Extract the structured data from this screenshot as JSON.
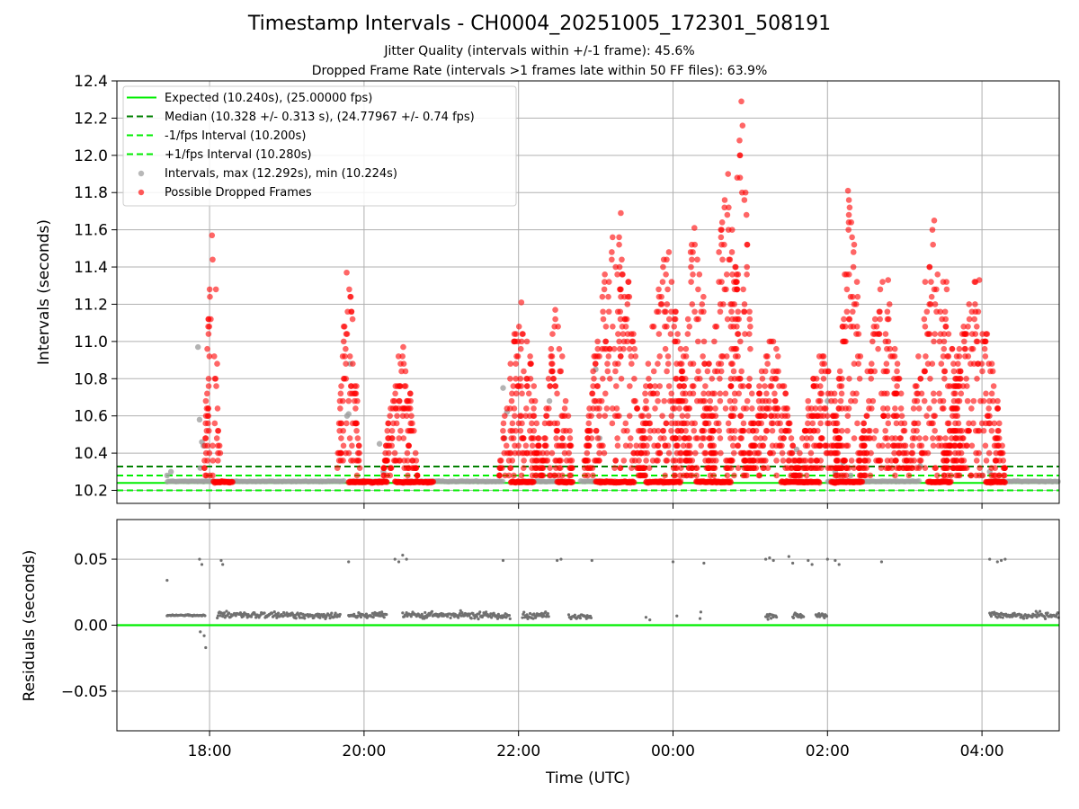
{
  "header": {
    "title": "Timestamp Intervals - CH0004_20251005_172301_508191",
    "subtitle_jitter": "Jitter Quality (intervals within +/-1 frame): 45.6%",
    "subtitle_dropped": "Dropped Frame Rate (intervals >1 frames late within 50 FF files): 63.9%"
  },
  "colors": {
    "expected": "#00ee00",
    "median": "#008000",
    "interval_points": "#a0a0a0",
    "dropped_points": "#ff0000",
    "residual_points": "#707070",
    "grid": "#b0b0b0"
  },
  "chart_data": [
    {
      "type": "scatter",
      "panel": "intervals",
      "title": "Timestamp Intervals - CH0004_20251005_172301_508191",
      "xlabel": "",
      "ylabel": "Intervals (seconds)",
      "x_unit": "hours since 00:00 UTC Oct 5",
      "xlim": [
        16.8,
        29.0
      ],
      "ylim": [
        10.13,
        12.4
      ],
      "grid": true,
      "x_ticks": [
        18,
        20,
        22,
        24,
        26,
        28
      ],
      "y_ticks": [
        10.2,
        10.4,
        10.6,
        10.8,
        11.0,
        11.2,
        11.4,
        11.6,
        11.8,
        12.0,
        12.2,
        12.4
      ],
      "y_tick_labels": [
        "10.2",
        "10.4",
        "10.6",
        "10.8",
        "11.0",
        "11.2",
        "11.4",
        "11.6",
        "11.8",
        "12.0",
        "12.2",
        "12.4"
      ],
      "legend_position": "top-left",
      "reference_lines": [
        {
          "name": "expected",
          "y": 10.24,
          "style": "solid",
          "color": "#00ee00",
          "label": "Expected (10.240s), (25.00000 fps)"
        },
        {
          "name": "median",
          "y": 10.328,
          "style": "dashed",
          "color": "#008000",
          "label": "Median (10.328 +/- 0.313 s), (24.77967 +/- 0.74 fps)"
        },
        {
          "name": "minus-one-fps",
          "y": 10.2,
          "style": "dashed",
          "color": "#00ee00",
          "label": "-1/fps Interval (10.200s)"
        },
        {
          "name": "plus-one-fps",
          "y": 10.28,
          "style": "dashed",
          "color": "#00ee00",
          "label": "+1/fps Interval (10.280s)"
        }
      ],
      "series": [
        {
          "name": "intervals",
          "label": "Intervals, max (12.292s), min (10.224s)",
          "color": "#a0a0a0",
          "max": 12.292,
          "min": 10.224,
          "baseline_segments": [
            [
              17.45,
              18.15
            ],
            [
              18.15,
              19.75
            ],
            [
              19.85,
              20.3
            ],
            [
              20.55,
              21.8
            ],
            [
              22.05,
              22.6
            ],
            [
              22.8,
              23.1
            ],
            [
              26.0,
              27.2
            ],
            [
              28.1,
              29.0
            ]
          ],
          "baseline_value": 10.248,
          "x": [
            17.45,
            17.5,
            17.85,
            17.87,
            17.9,
            17.88,
            17.92,
            19.8,
            19.82,
            19.78,
            20.2,
            20.25,
            21.8,
            21.82,
            21.85,
            22.4,
            23.0,
            23.05,
            25.6,
            26.0,
            26.1,
            26.2,
            26.3,
            27.2,
            28.0,
            28.1
          ],
          "y": [
            10.28,
            10.3,
            10.97,
            10.58,
            10.46,
            10.32,
            10.44,
            10.61,
            10.88,
            10.6,
            10.45,
            10.3,
            10.75,
            10.48,
            10.62,
            10.68,
            10.85,
            10.48,
            10.42,
            10.68,
            10.3,
            10.35,
            10.28,
            10.33,
            10.28,
            10.3
          ]
        },
        {
          "name": "possible-dropped-frames",
          "label": "Possible Dropped Frames",
          "color": "#ff0000",
          "bursts": [
            {
              "start": 17.93,
              "end": 18.15,
              "peak": 11.57
            },
            {
              "start": 19.65,
              "end": 19.95,
              "peak": 11.37
            },
            {
              "start": 20.25,
              "end": 20.7,
              "peak": 10.97
            },
            {
              "start": 21.75,
              "end": 22.3,
              "peak": 11.21
            },
            {
              "start": 22.3,
              "end": 22.7,
              "peak": 11.17
            },
            {
              "start": 22.85,
              "end": 23.65,
              "peak": 11.69
            },
            {
              "start": 23.55,
              "end": 24.25,
              "peak": 11.48
            },
            {
              "start": 24.0,
              "end": 24.55,
              "peak": 11.61
            },
            {
              "start": 24.45,
              "end": 24.95,
              "peak": 11.9
            },
            {
              "start": 24.7,
              "end": 25.05,
              "peak": 12.29
            },
            {
              "start": 24.95,
              "end": 25.6,
              "peak": 11.0
            },
            {
              "start": 25.6,
              "end": 26.25,
              "peak": 10.92
            },
            {
              "start": 26.1,
              "end": 26.5,
              "peak": 11.81
            },
            {
              "start": 26.4,
              "end": 27.05,
              "peak": 11.33
            },
            {
              "start": 27.05,
              "end": 27.75,
              "peak": 11.65
            },
            {
              "start": 27.5,
              "end": 28.3,
              "peak": 11.33
            }
          ],
          "floor_clusters": [
            [
              18.05,
              18.3
            ],
            [
              19.8,
              20.3
            ],
            [
              20.4,
              20.9
            ],
            [
              21.9,
              22.2
            ],
            [
              22.5,
              22.7
            ],
            [
              23.0,
              23.5
            ],
            [
              23.65,
              24.1
            ],
            [
              24.3,
              24.75
            ],
            [
              25.4,
              25.9
            ],
            [
              26.05,
              26.45
            ],
            [
              27.3,
              27.6
            ],
            [
              28.05,
              28.3
            ]
          ]
        }
      ]
    },
    {
      "type": "scatter",
      "panel": "residuals",
      "xlabel": "Time (UTC)",
      "ylabel": "Residuals (seconds)",
      "x_unit": "hours since 00:00 UTC Oct 5",
      "xlim": [
        16.8,
        29.0
      ],
      "ylim": [
        -0.08,
        0.08
      ],
      "grid": true,
      "x_ticks": [
        18,
        20,
        22,
        24,
        26,
        28
      ],
      "x_tick_labels": [
        "18:00",
        "20:00",
        "22:00",
        "00:00",
        "02:00",
        "04:00"
      ],
      "y_ticks": [
        0.05,
        0.0,
        -0.05
      ],
      "y_tick_labels": [
        "0.05",
        "0.00",
        "−0.05"
      ],
      "zero_line": {
        "y": 0.0,
        "color": "#00ee00"
      },
      "series": [
        {
          "name": "residuals",
          "color": "#707070",
          "bands": [
            {
              "start": 17.45,
              "end": 17.95,
              "y": 0.0075,
              "spread": 0.0015
            },
            {
              "start": 18.1,
              "end": 19.7,
              "y": 0.0075,
              "spread": 0.006
            },
            {
              "start": 19.8,
              "end": 20.3,
              "y": 0.0075,
              "spread": 0.006
            },
            {
              "start": 20.5,
              "end": 21.9,
              "y": 0.0075,
              "spread": 0.006
            },
            {
              "start": 22.05,
              "end": 22.4,
              "y": 0.0075,
              "spread": 0.006
            },
            {
              "start": 22.65,
              "end": 22.95,
              "y": 0.0065,
              "spread": 0.005
            },
            {
              "start": 25.2,
              "end": 25.35,
              "y": 0.007,
              "spread": 0.005
            },
            {
              "start": 25.55,
              "end": 25.7,
              "y": 0.007,
              "spread": 0.005
            },
            {
              "start": 25.85,
              "end": 26.0,
              "y": 0.007,
              "spread": 0.005
            },
            {
              "start": 28.1,
              "end": 29.0,
              "y": 0.0075,
              "spread": 0.006
            }
          ],
          "x": [
            17.45,
            17.87,
            17.88,
            17.9,
            17.93,
            17.95,
            18.15,
            18.17,
            19.8,
            20.4,
            20.45,
            20.5,
            20.55,
            21.8,
            22.5,
            22.55,
            22.95,
            23.65,
            23.7,
            24.0,
            24.05,
            24.35,
            24.36,
            24.4,
            25.2,
            25.25,
            25.3,
            25.5,
            25.55,
            25.75,
            25.8,
            26.0,
            26.1,
            26.15,
            26.7,
            28.1,
            28.2,
            28.25,
            28.3
          ],
          "y": [
            0.034,
            0.05,
            -0.005,
            0.046,
            -0.008,
            -0.017,
            0.049,
            0.046,
            0.048,
            0.05,
            0.048,
            0.053,
            0.05,
            0.049,
            0.049,
            0.05,
            0.049,
            0.006,
            0.004,
            0.048,
            0.007,
            0.005,
            0.01,
            0.047,
            0.05,
            0.051,
            0.049,
            0.052,
            0.047,
            0.049,
            0.046,
            0.05,
            0.049,
            0.046,
            0.048,
            0.05,
            0.048,
            0.049,
            0.05
          ]
        }
      ]
    }
  ]
}
